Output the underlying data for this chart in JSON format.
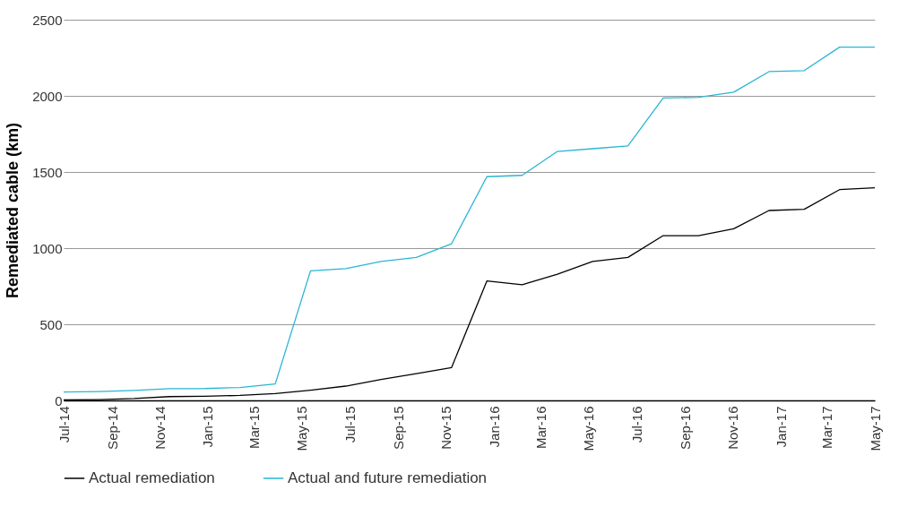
{
  "chart_data": {
    "type": "line",
    "ylabel": "Remediated cable (km)",
    "x": [
      "2014-07-01",
      "2014-08-15",
      "2014-09-29",
      "2014-11-13",
      "2014-12-28",
      "2015-02-11",
      "2015-03-28",
      "2015-05-12",
      "2015-06-26",
      "2015-08-10",
      "2015-09-24",
      "2015-11-08",
      "2015-12-23",
      "2016-02-06",
      "2016-03-22",
      "2016-05-06",
      "2016-06-20",
      "2016-08-04",
      "2016-09-18",
      "2016-11-02",
      "2016-12-17",
      "2017-01-31",
      "2017-03-17",
      "2017-05-01"
    ],
    "series": [
      {
        "name": "Actual remediation",
        "color": "#000000",
        "values": [
          3,
          5,
          12,
          25,
          27,
          33,
          45,
          67,
          94,
          137,
          176,
          216,
          784,
          759,
          829,
          912,
          939,
          1082,
          1082,
          1127,
          1247,
          1255,
          1384,
          1396
        ]
      },
      {
        "name": "Actual and future remediation",
        "color": "#29b5d3",
        "values": [
          55,
          58,
          65,
          77,
          78,
          85,
          108,
          851,
          865,
          912,
          939,
          1029,
          1469,
          1478,
          1635,
          1653,
          1671,
          1986,
          1990,
          2024,
          2159,
          2166,
          2320,
          2320
        ]
      }
    ],
    "xlim": [
      "2014-07-01",
      "2017-05-01"
    ],
    "xticks": [
      {
        "value": "2014-07-01",
        "label": "Jul-14"
      },
      {
        "value": "2014-09-01",
        "label": "Sep-14"
      },
      {
        "value": "2014-11-01",
        "label": "Nov-14"
      },
      {
        "value": "2015-01-01",
        "label": "Jan-15"
      },
      {
        "value": "2015-03-01",
        "label": "Mar-15"
      },
      {
        "value": "2015-05-01",
        "label": "May-15"
      },
      {
        "value": "2015-07-01",
        "label": "Jul-15"
      },
      {
        "value": "2015-09-01",
        "label": "Sep-15"
      },
      {
        "value": "2015-11-01",
        "label": "Nov-15"
      },
      {
        "value": "2016-01-01",
        "label": "Jan-16"
      },
      {
        "value": "2016-03-01",
        "label": "Mar-16"
      },
      {
        "value": "2016-05-01",
        "label": "May-16"
      },
      {
        "value": "2016-07-01",
        "label": "Jul-16"
      },
      {
        "value": "2016-09-01",
        "label": "Sep-16"
      },
      {
        "value": "2016-11-01",
        "label": "Nov-16"
      },
      {
        "value": "2017-01-01",
        "label": "Jan-17"
      },
      {
        "value": "2017-03-01",
        "label": "Mar-17"
      },
      {
        "value": "2017-05-01",
        "label": "May-17"
      }
    ],
    "ylim": [
      0,
      2500
    ],
    "yticks": [
      0,
      500,
      1000,
      1500,
      2000,
      2500
    ],
    "grid": "y",
    "legend": "bottom",
    "marker": "none",
    "line_style": "solid"
  }
}
